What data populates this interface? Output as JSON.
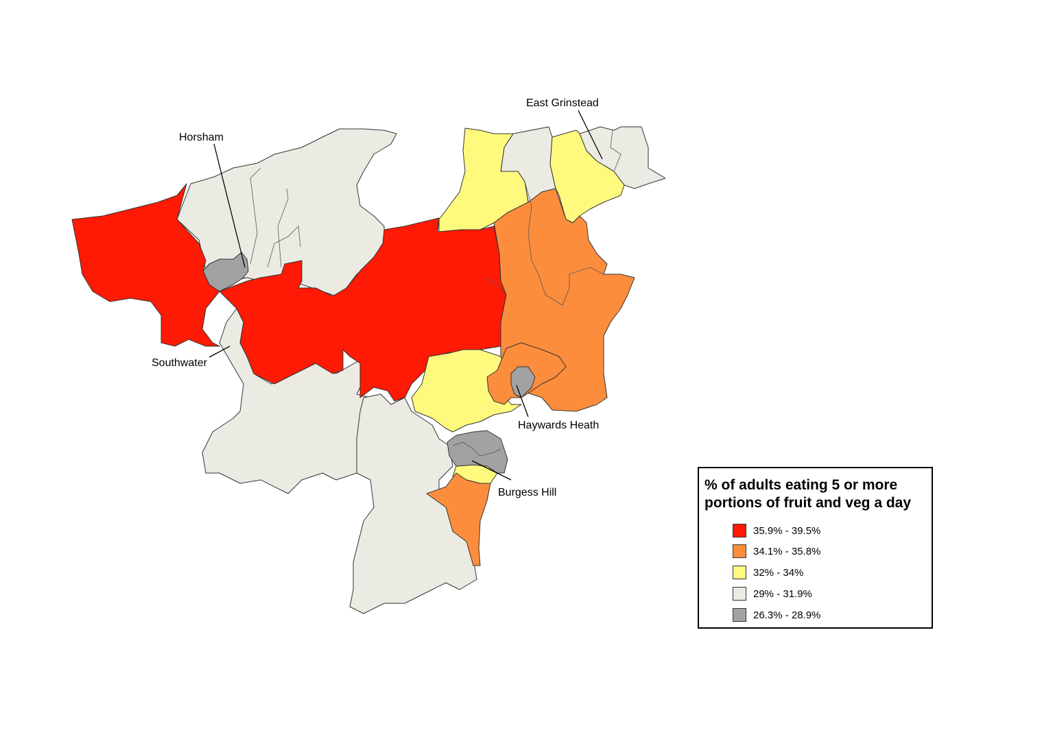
{
  "map": {
    "legend": {
      "title": "% of adults eating 5 or more portions of fruit and veg a day",
      "classes": [
        {
          "label": "35.9% - 39.5%",
          "color": "#ff1a05"
        },
        {
          "label": "34.1% - 35.8%",
          "color": "#fc8d3c"
        },
        {
          "label": "32% - 34%",
          "color": "#fffa7e"
        },
        {
          "label": "29% - 31.9%",
          "color": "#ebebe4"
        },
        {
          "label": "26.3% - 28.9%",
          "color": "#a2a2a2"
        }
      ]
    },
    "labels": {
      "east_grinstead": "East Grinstead",
      "horsham": "Horsham",
      "southwater": "Southwater",
      "haywards_heath": "Haywards Heath",
      "burgess_hill": "Burgess Hill"
    }
  }
}
